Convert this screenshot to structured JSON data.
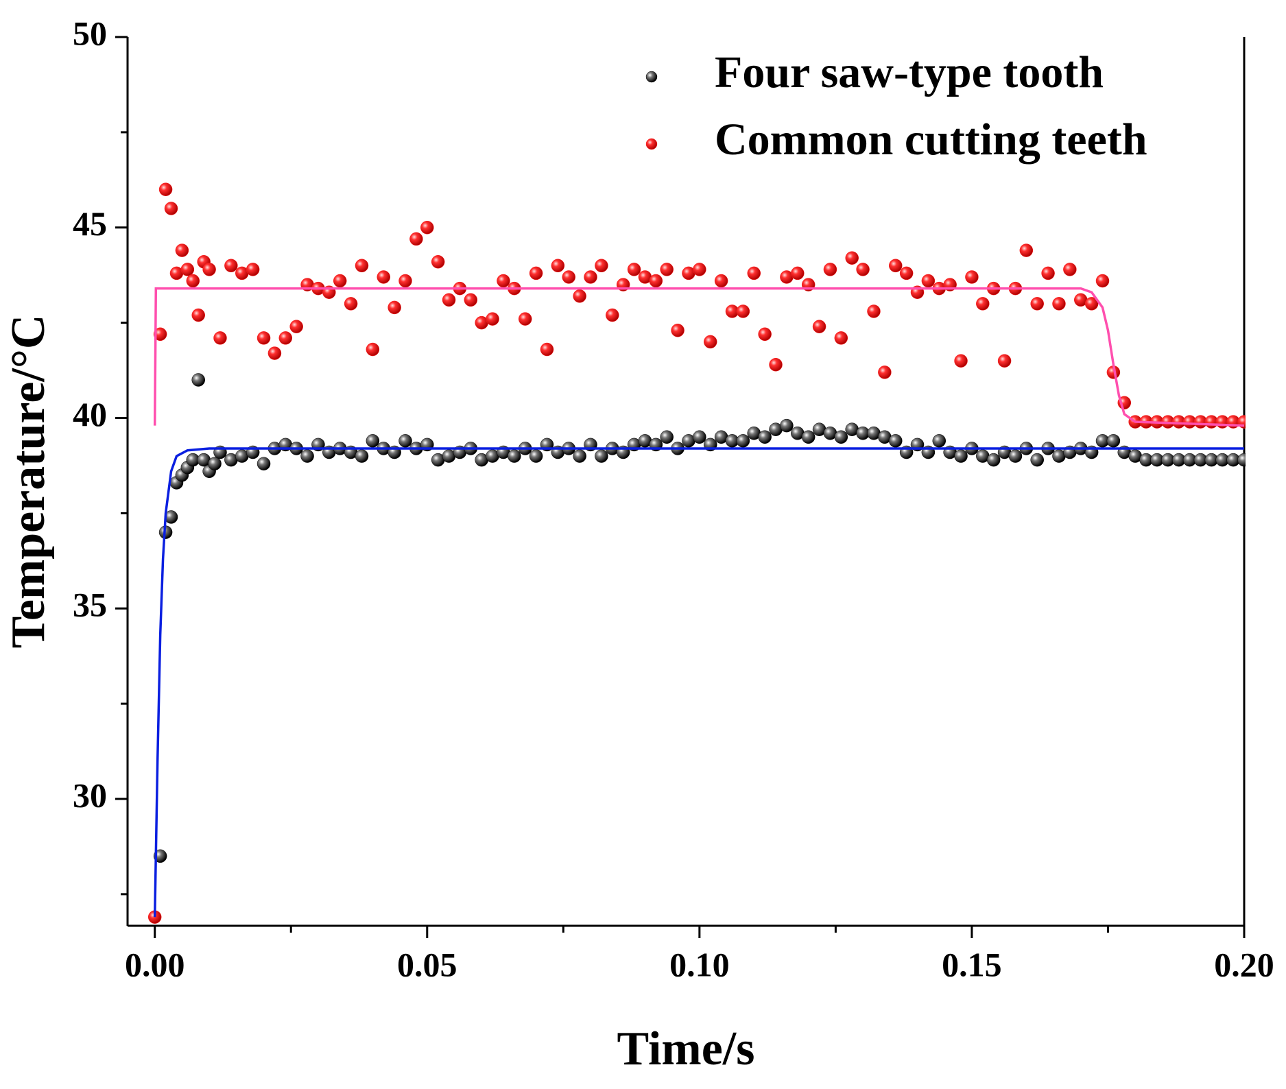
{
  "chart_data": {
    "type": "scatter",
    "x_label": "Time/s",
    "y_label": "Temperature/°C",
    "xlim": [
      -0.005,
      0.2
    ],
    "ylim": [
      26.67,
      50
    ],
    "xticks": [
      {
        "value": 0,
        "label": "0.00"
      },
      {
        "value": 0.05,
        "label": "0.05"
      },
      {
        "value": 0.1,
        "label": "0.10"
      },
      {
        "value": 0.15,
        "label": "0.15"
      },
      {
        "value": 0.2,
        "label": "0.20"
      }
    ],
    "xminorticks": [
      0.025,
      0.075,
      0.125,
      0.175
    ],
    "yticks": [
      30,
      35,
      40,
      45,
      50
    ],
    "yminorticks": [
      27.5,
      32.5,
      37.5,
      42.5,
      47.5
    ],
    "legend": "upper right",
    "series": [
      {
        "name": "Four saw-type tooth",
        "color": "#000000",
        "x": [
          0.001,
          0.002,
          0.003,
          0.004,
          0.005,
          0.006,
          0.007,
          0.008,
          0.009,
          0.01,
          0.011,
          0.012,
          0.014,
          0.016,
          0.018,
          0.02,
          0.022,
          0.024,
          0.026,
          0.028,
          0.03,
          0.032,
          0.034,
          0.036,
          0.038,
          0.04,
          0.042,
          0.044,
          0.046,
          0.048,
          0.05,
          0.052,
          0.054,
          0.056,
          0.058,
          0.06,
          0.062,
          0.064,
          0.066,
          0.068,
          0.07,
          0.072,
          0.074,
          0.076,
          0.078,
          0.08,
          0.082,
          0.084,
          0.086,
          0.088,
          0.09,
          0.092,
          0.094,
          0.096,
          0.098,
          0.1,
          0.102,
          0.104,
          0.106,
          0.108,
          0.11,
          0.112,
          0.114,
          0.116,
          0.118,
          0.12,
          0.122,
          0.124,
          0.126,
          0.128,
          0.13,
          0.132,
          0.134,
          0.136,
          0.138,
          0.14,
          0.142,
          0.144,
          0.146,
          0.148,
          0.15,
          0.152,
          0.154,
          0.156,
          0.158,
          0.16,
          0.162,
          0.164,
          0.166,
          0.168,
          0.17,
          0.172,
          0.174,
          0.176,
          0.178,
          0.18,
          0.182,
          0.184,
          0.186,
          0.188,
          0.19,
          0.192,
          0.194,
          0.196,
          0.198,
          0.2
        ],
        "values": [
          28.5,
          37.0,
          37.4,
          38.3,
          38.5,
          38.7,
          38.9,
          41.0,
          38.9,
          38.6,
          38.8,
          39.1,
          38.9,
          39.0,
          39.1,
          38.8,
          39.2,
          39.3,
          39.2,
          39.0,
          39.3,
          39.1,
          39.2,
          39.1,
          39.0,
          39.4,
          39.2,
          39.1,
          39.4,
          39.2,
          39.3,
          38.9,
          39.0,
          39.1,
          39.2,
          38.9,
          39.0,
          39.1,
          39.0,
          39.2,
          39.0,
          39.3,
          39.1,
          39.2,
          39.0,
          39.3,
          39.0,
          39.2,
          39.1,
          39.3,
          39.4,
          39.3,
          39.5,
          39.2,
          39.4,
          39.5,
          39.3,
          39.5,
          39.4,
          39.4,
          39.6,
          39.5,
          39.7,
          39.8,
          39.6,
          39.5,
          39.7,
          39.6,
          39.5,
          39.7,
          39.6,
          39.6,
          39.5,
          39.4,
          39.1,
          39.3,
          39.1,
          39.4,
          39.1,
          39.0,
          39.2,
          39.0,
          38.9,
          39.1,
          39.0,
          39.2,
          38.9,
          39.2,
          39.0,
          39.1,
          39.2,
          39.1,
          39.4,
          39.4,
          39.1,
          39.0,
          38.9,
          38.9,
          38.9,
          38.9,
          38.9,
          38.9,
          38.9,
          38.9,
          38.9,
          38.9
        ]
      },
      {
        "name": "Common cutting teeth",
        "color": "#ff1a1a",
        "x": [
          0,
          0.001,
          0.002,
          0.003,
          0.004,
          0.005,
          0.006,
          0.007,
          0.008,
          0.009,
          0.01,
          0.012,
          0.014,
          0.016,
          0.018,
          0.02,
          0.022,
          0.024,
          0.026,
          0.028,
          0.03,
          0.032,
          0.034,
          0.036,
          0.038,
          0.04,
          0.042,
          0.044,
          0.046,
          0.048,
          0.05,
          0.052,
          0.054,
          0.056,
          0.058,
          0.06,
          0.062,
          0.064,
          0.066,
          0.068,
          0.07,
          0.072,
          0.074,
          0.076,
          0.078,
          0.08,
          0.082,
          0.084,
          0.086,
          0.088,
          0.09,
          0.092,
          0.094,
          0.096,
          0.098,
          0.1,
          0.102,
          0.104,
          0.106,
          0.108,
          0.11,
          0.112,
          0.114,
          0.116,
          0.118,
          0.12,
          0.122,
          0.124,
          0.126,
          0.128,
          0.13,
          0.132,
          0.134,
          0.136,
          0.138,
          0.14,
          0.142,
          0.144,
          0.146,
          0.148,
          0.15,
          0.152,
          0.154,
          0.156,
          0.158,
          0.16,
          0.162,
          0.164,
          0.166,
          0.168,
          0.17,
          0.172,
          0.174,
          0.176,
          0.178,
          0.18,
          0.182,
          0.184,
          0.186,
          0.188,
          0.19,
          0.192,
          0.194,
          0.196,
          0.198,
          0.2
        ],
        "values": [
          26.9,
          42.2,
          46.0,
          45.5,
          43.8,
          44.4,
          43.9,
          43.6,
          42.7,
          44.1,
          43.9,
          42.1,
          44.0,
          43.8,
          43.9,
          42.1,
          41.7,
          42.1,
          42.4,
          43.5,
          43.4,
          43.3,
          43.6,
          43.0,
          44.0,
          41.8,
          43.7,
          42.9,
          43.6,
          44.7,
          45.0,
          44.1,
          43.1,
          43.4,
          43.1,
          42.5,
          42.6,
          43.6,
          43.4,
          42.6,
          43.8,
          41.8,
          44.0,
          43.7,
          43.2,
          43.7,
          44.0,
          42.7,
          43.5,
          43.9,
          43.7,
          43.6,
          43.9,
          42.3,
          43.8,
          43.9,
          42.0,
          43.6,
          42.8,
          42.8,
          43.8,
          42.2,
          41.4,
          43.7,
          43.8,
          43.5,
          42.4,
          43.9,
          42.1,
          44.2,
          43.9,
          42.8,
          41.2,
          44.0,
          43.8,
          43.3,
          43.6,
          43.4,
          43.5,
          41.5,
          43.7,
          43.0,
          43.4,
          41.5,
          43.4,
          44.4,
          43.0,
          43.8,
          43.0,
          43.9,
          43.1,
          43.0,
          43.6,
          41.2,
          40.4,
          39.9,
          39.9,
          39.9,
          39.9,
          39.9,
          39.9,
          39.9,
          39.9,
          39.9,
          39.9,
          39.9
        ]
      }
    ],
    "fits": [
      {
        "color": "#0a1fe0",
        "x": [
          0,
          0.0005,
          0.001,
          0.0015,
          0.002,
          0.003,
          0.004,
          0.006,
          0.01,
          0.2
        ],
        "values": [
          26.9,
          31.0,
          34.3,
          36.3,
          37.5,
          38.6,
          39.0,
          39.15,
          39.2,
          39.2
        ]
      },
      {
        "color": "#ff4fae",
        "x": [
          0,
          0.0002,
          0.17,
          0.172,
          0.174,
          0.175,
          0.176,
          0.177,
          0.178,
          0.18,
          0.2
        ],
        "values": [
          39.8,
          43.4,
          43.4,
          43.3,
          42.9,
          42.3,
          41.4,
          40.6,
          40.1,
          39.9,
          39.8
        ]
      }
    ]
  }
}
